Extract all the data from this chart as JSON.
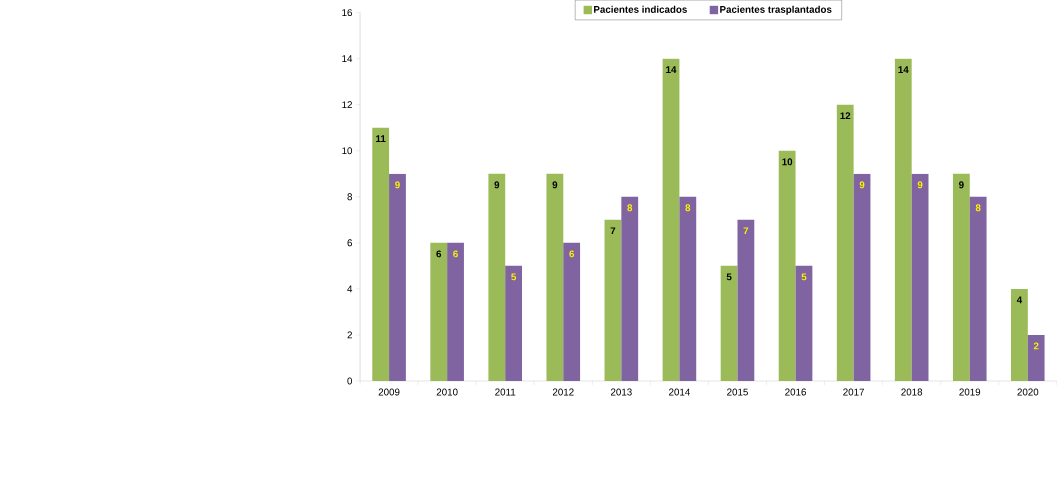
{
  "chart_data": {
    "type": "bar",
    "categories": [
      "2009",
      "2010",
      "2011",
      "2012",
      "2013",
      "2014",
      "2015",
      "2016",
      "2017",
      "2018",
      "2019",
      "2020"
    ],
    "series": [
      {
        "name": "Pacientes indicados",
        "color": "#9bbb59",
        "values": [
          11,
          6,
          9,
          9,
          7,
          14,
          5,
          10,
          12,
          14,
          9,
          4
        ]
      },
      {
        "name": "Pacientes trasplantados",
        "color": "#8064a2",
        "values": [
          9,
          6,
          5,
          6,
          8,
          8,
          7,
          5,
          9,
          9,
          8,
          2
        ]
      }
    ],
    "ylim": [
      0,
      16
    ],
    "yticks": [
      0,
      2,
      4,
      6,
      8,
      10,
      12,
      14,
      16
    ],
    "legend": "top",
    "data_labels": true
  }
}
